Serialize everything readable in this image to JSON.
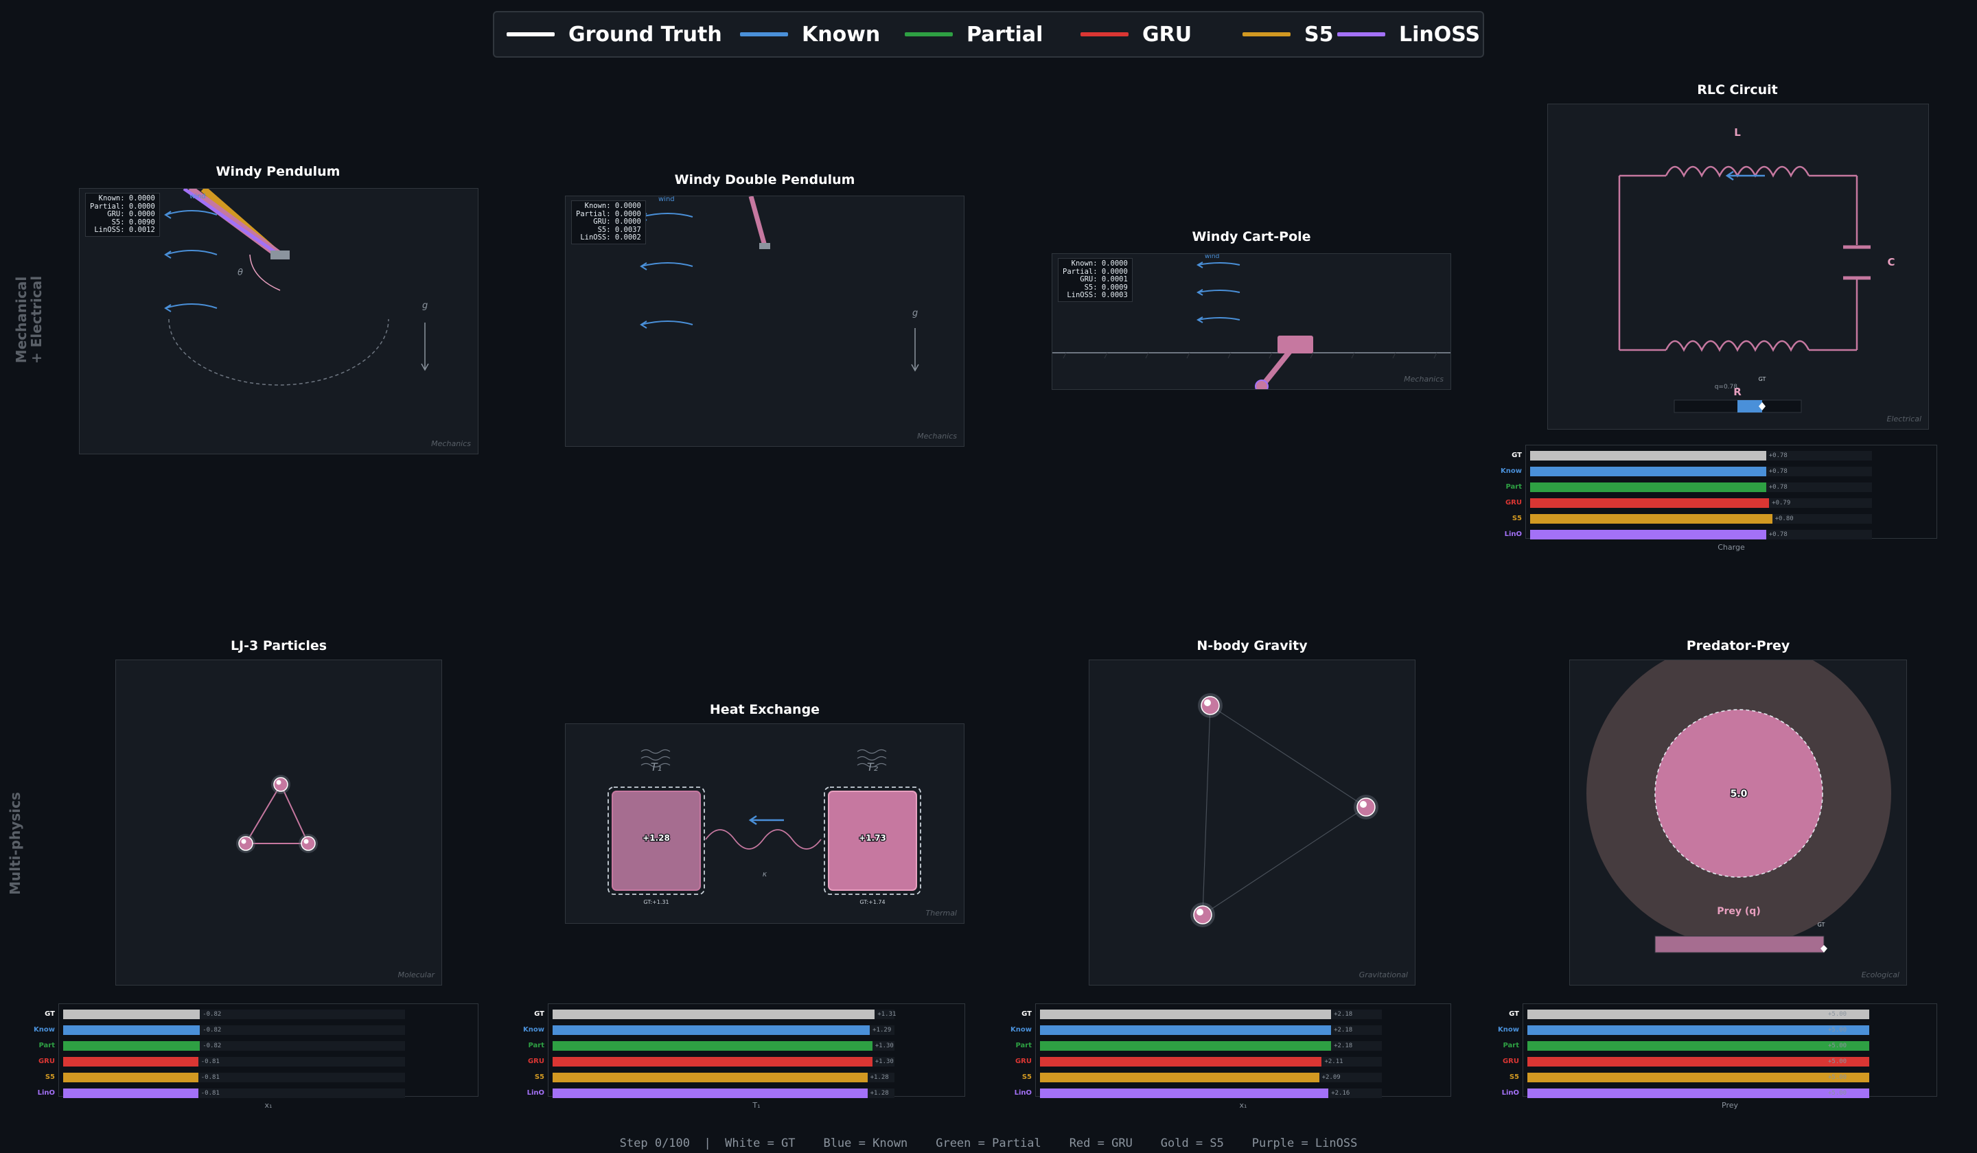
{
  "legend": [
    {
      "label": "Ground Truth",
      "color": "#ffffff"
    },
    {
      "label": "Known",
      "color": "#4a90d9"
    },
    {
      "label": "Partial",
      "color": "#2ea043"
    },
    {
      "label": "GRU",
      "color": "#da3633"
    },
    {
      "label": "S5",
      "color": "#d29922"
    },
    {
      "label": "LinOSS",
      "color": "#a371f7"
    }
  ],
  "row_labels": [
    "Mechanical\n+ Electrical",
    "Multi-physics"
  ],
  "colors": {
    "bg": "#0d1117",
    "panel": "#161b22",
    "border": "#30363d",
    "accent_pink": "#c678a0",
    "wind": "#4a90d9"
  },
  "panels": {
    "pendulum": {
      "title": "Windy Pendulum",
      "metrics": [
        "Known: 0.0000",
        "Partial: 0.0000",
        "GRU: 0.0000",
        "S5: 0.0090",
        "LinOSS: 0.0012"
      ],
      "wind_label": "wind",
      "theta_label": "θ",
      "g_label": "g",
      "domain": "Mechanics"
    },
    "double_pendulum": {
      "title": "Windy Double Pendulum",
      "metrics": [
        "Known: 0.0000",
        "Partial: 0.0000",
        "GRU: 0.0000",
        "S5: 0.0037",
        "LinOSS: 0.0002"
      ],
      "wind_label": "wind",
      "g_label": "g",
      "domain": "Mechanics"
    },
    "cartpole": {
      "title": "Windy Cart-Pole",
      "metrics": [
        "Known: 0.0000",
        "Partial: 0.0000",
        "GRU: 0.0001",
        "S5: 0.0009",
        "LinOSS: 0.0003"
      ],
      "wind_label": "wind",
      "domain": "Mechanics"
    },
    "rlc": {
      "title": "RLC Circuit",
      "l_label": "L",
      "c_label": "C",
      "r_label": "R",
      "gt_label": "GT",
      "charge_text": "q=0.78",
      "domain": "Electrical"
    },
    "lj3": {
      "title": "LJ-3 Particles",
      "domain": "Molecular"
    },
    "heat": {
      "title": "Heat Exchange",
      "t1_label": "T₁",
      "t2_label": "T₂",
      "t1_value": "+1.28",
      "t2_value": "+1.73",
      "t1_gt": "GT:+1.31",
      "t2_gt": "GT:+1.74",
      "kappa_label": "κ",
      "domain": "Thermal"
    },
    "nbody": {
      "title": "N-body Gravity",
      "domain": "Gravitational"
    },
    "predprey": {
      "title": "Predator-Prey",
      "center_value": "5.0",
      "prey_label": "Prey (q)",
      "gt_label": "GT",
      "domain": "Ecological"
    }
  },
  "chart_data": [
    {
      "type": "bar",
      "panel": "rlc",
      "xlabel": "Charge",
      "categories": [
        "GT",
        "Know",
        "Part",
        "GRU",
        "S5",
        "LinO"
      ],
      "values": [
        0.78,
        0.78,
        0.78,
        0.79,
        0.8,
        0.78
      ],
      "value_labels": [
        "+0.78",
        "+0.78",
        "+0.78",
        "+0.79",
        "+0.80",
        "+0.78"
      ],
      "xlim": [
        0,
        1.13
      ]
    },
    {
      "type": "bar",
      "panel": "lj3",
      "xlabel": "x₁",
      "categories": [
        "GT",
        "Know",
        "Part",
        "GRU",
        "S5",
        "LinO"
      ],
      "values": [
        -0.82,
        -0.82,
        -0.82,
        -0.81,
        -0.81,
        -0.81
      ],
      "value_labels": [
        "-0.82",
        "-0.82",
        "-0.82",
        "-0.81",
        "-0.81",
        "-0.81"
      ],
      "xlim": [
        0,
        2.05
      ]
    },
    {
      "type": "bar",
      "panel": "heat",
      "xlabel": "T₁",
      "categories": [
        "GT",
        "Know",
        "Part",
        "GRU",
        "S5",
        "LinO"
      ],
      "values": [
        1.31,
        1.29,
        1.3,
        1.3,
        1.28,
        1.28
      ],
      "value_labels": [
        "+1.31",
        "+1.29",
        "+1.30",
        "+1.30",
        "+1.28",
        "+1.28"
      ],
      "xlim": [
        0,
        1.39
      ]
    },
    {
      "type": "bar",
      "panel": "nbody",
      "xlabel": "x₁",
      "categories": [
        "GT",
        "Know",
        "Part",
        "GRU",
        "S5",
        "LinO"
      ],
      "values": [
        2.18,
        2.18,
        2.18,
        2.11,
        2.09,
        2.16
      ],
      "value_labels": [
        "+2.18",
        "+2.18",
        "+2.18",
        "+2.11",
        "+2.09",
        "+2.16"
      ],
      "xlim": [
        0,
        2.56
      ]
    },
    {
      "type": "bar",
      "panel": "predprey",
      "xlabel": "Prey",
      "categories": [
        "GT",
        "Know",
        "Part",
        "GRU",
        "S5",
        "LinO"
      ],
      "values": [
        5.0,
        5.0,
        5.0,
        5.0,
        5.0,
        5.0
      ],
      "value_labels": [
        "+5.00",
        "+5.00",
        "+5.00",
        "+5.00",
        "+5.00",
        "+5.00"
      ],
      "xlim": [
        0,
        5.0
      ]
    }
  ],
  "footer": "Step 0/100  |  White = GT    Blue = Known    Green = Partial    Red = GRU    Gold = S5    Purple = LinOSS"
}
